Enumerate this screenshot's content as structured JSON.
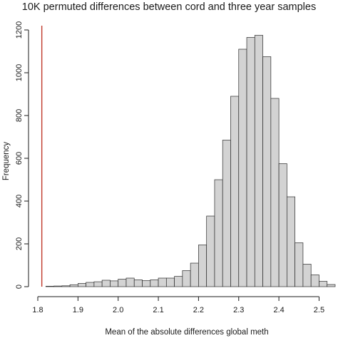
{
  "chart_data": {
    "type": "bar",
    "title": "10K permuted differences between cord and three year samples",
    "xlabel": "Mean of the absolute differences global meth",
    "ylabel": "Frequency",
    "bin_width": 0.02,
    "bin_starts": [
      1.82,
      1.84,
      1.86,
      1.88,
      1.9,
      1.92,
      1.94,
      1.96,
      1.98,
      2.0,
      2.02,
      2.04,
      2.06,
      2.08,
      2.1,
      2.12,
      2.14,
      2.16,
      2.18,
      2.2,
      2.22,
      2.24,
      2.26,
      2.28,
      2.3,
      2.32,
      2.34,
      2.36,
      2.38,
      2.4,
      2.42,
      2.44,
      2.46,
      2.48,
      2.5,
      2.52
    ],
    "values": [
      2,
      3,
      4,
      9,
      15,
      20,
      23,
      30,
      27,
      35,
      40,
      32,
      28,
      32,
      40,
      40,
      48,
      75,
      110,
      195,
      330,
      500,
      685,
      890,
      1110,
      1165,
      1175,
      1075,
      880,
      575,
      420,
      205,
      105,
      55,
      25,
      10
    ],
    "xlim": [
      1.8,
      2.54
    ],
    "ylim": [
      0,
      1200
    ],
    "xticks": [
      "1.8",
      "1.9",
      "2.0",
      "2.1",
      "2.2",
      "2.3",
      "2.4",
      "2.5"
    ],
    "yticks": [
      "0",
      "200",
      "400",
      "600",
      "800",
      "1000",
      "1200"
    ],
    "observed_line": {
      "x": 1.81,
      "color": "#c0392b"
    },
    "bar_color": "#d3d3d3",
    "grid": false
  }
}
